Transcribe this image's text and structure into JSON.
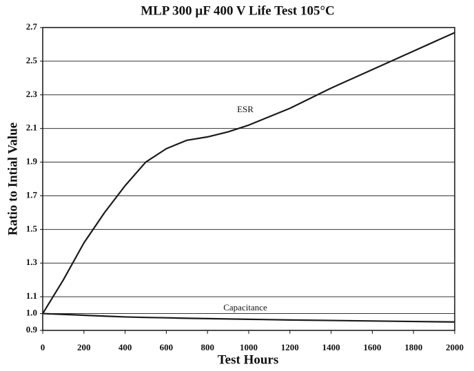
{
  "chart_data": {
    "type": "line",
    "title": "MLP 300 µF 400 V Life Test 105°C",
    "x_label": "Test Hours",
    "y_label": "Ratio to Intial Value",
    "x": [
      0,
      100,
      200,
      300,
      400,
      500,
      600,
      700,
      800,
      900,
      1000,
      1200,
      1400,
      1600,
      1800,
      2000
    ],
    "series": [
      {
        "name": "ESR",
        "color": "#1a1a1a",
        "values": [
          1.0,
          1.2,
          1.42,
          1.6,
          1.76,
          1.9,
          1.98,
          2.03,
          2.05,
          2.08,
          2.12,
          2.22,
          2.34,
          2.45,
          2.56,
          2.67
        ]
      },
      {
        "name": "Capacitance",
        "color": "#1a1a1a",
        "values": [
          1.0,
          0.995,
          0.99,
          0.985,
          0.98,
          0.977,
          0.975,
          0.972,
          0.97,
          0.968,
          0.966,
          0.962,
          0.959,
          0.956,
          0.953,
          0.95
        ]
      }
    ],
    "xlim": [
      0,
      2000
    ],
    "xticks": [
      0,
      200,
      400,
      600,
      800,
      1000,
      1200,
      1400,
      1600,
      1800,
      2000
    ],
    "ylim": [
      0.9,
      2.7
    ],
    "yticks": [
      0.9,
      {
        "value": 1,
        "label": "1.0"
      },
      1.1,
      1.3,
      1.5,
      1.7,
      1.9,
      2.1,
      2.3,
      2.5,
      2.7
    ],
    "grid": true
  }
}
